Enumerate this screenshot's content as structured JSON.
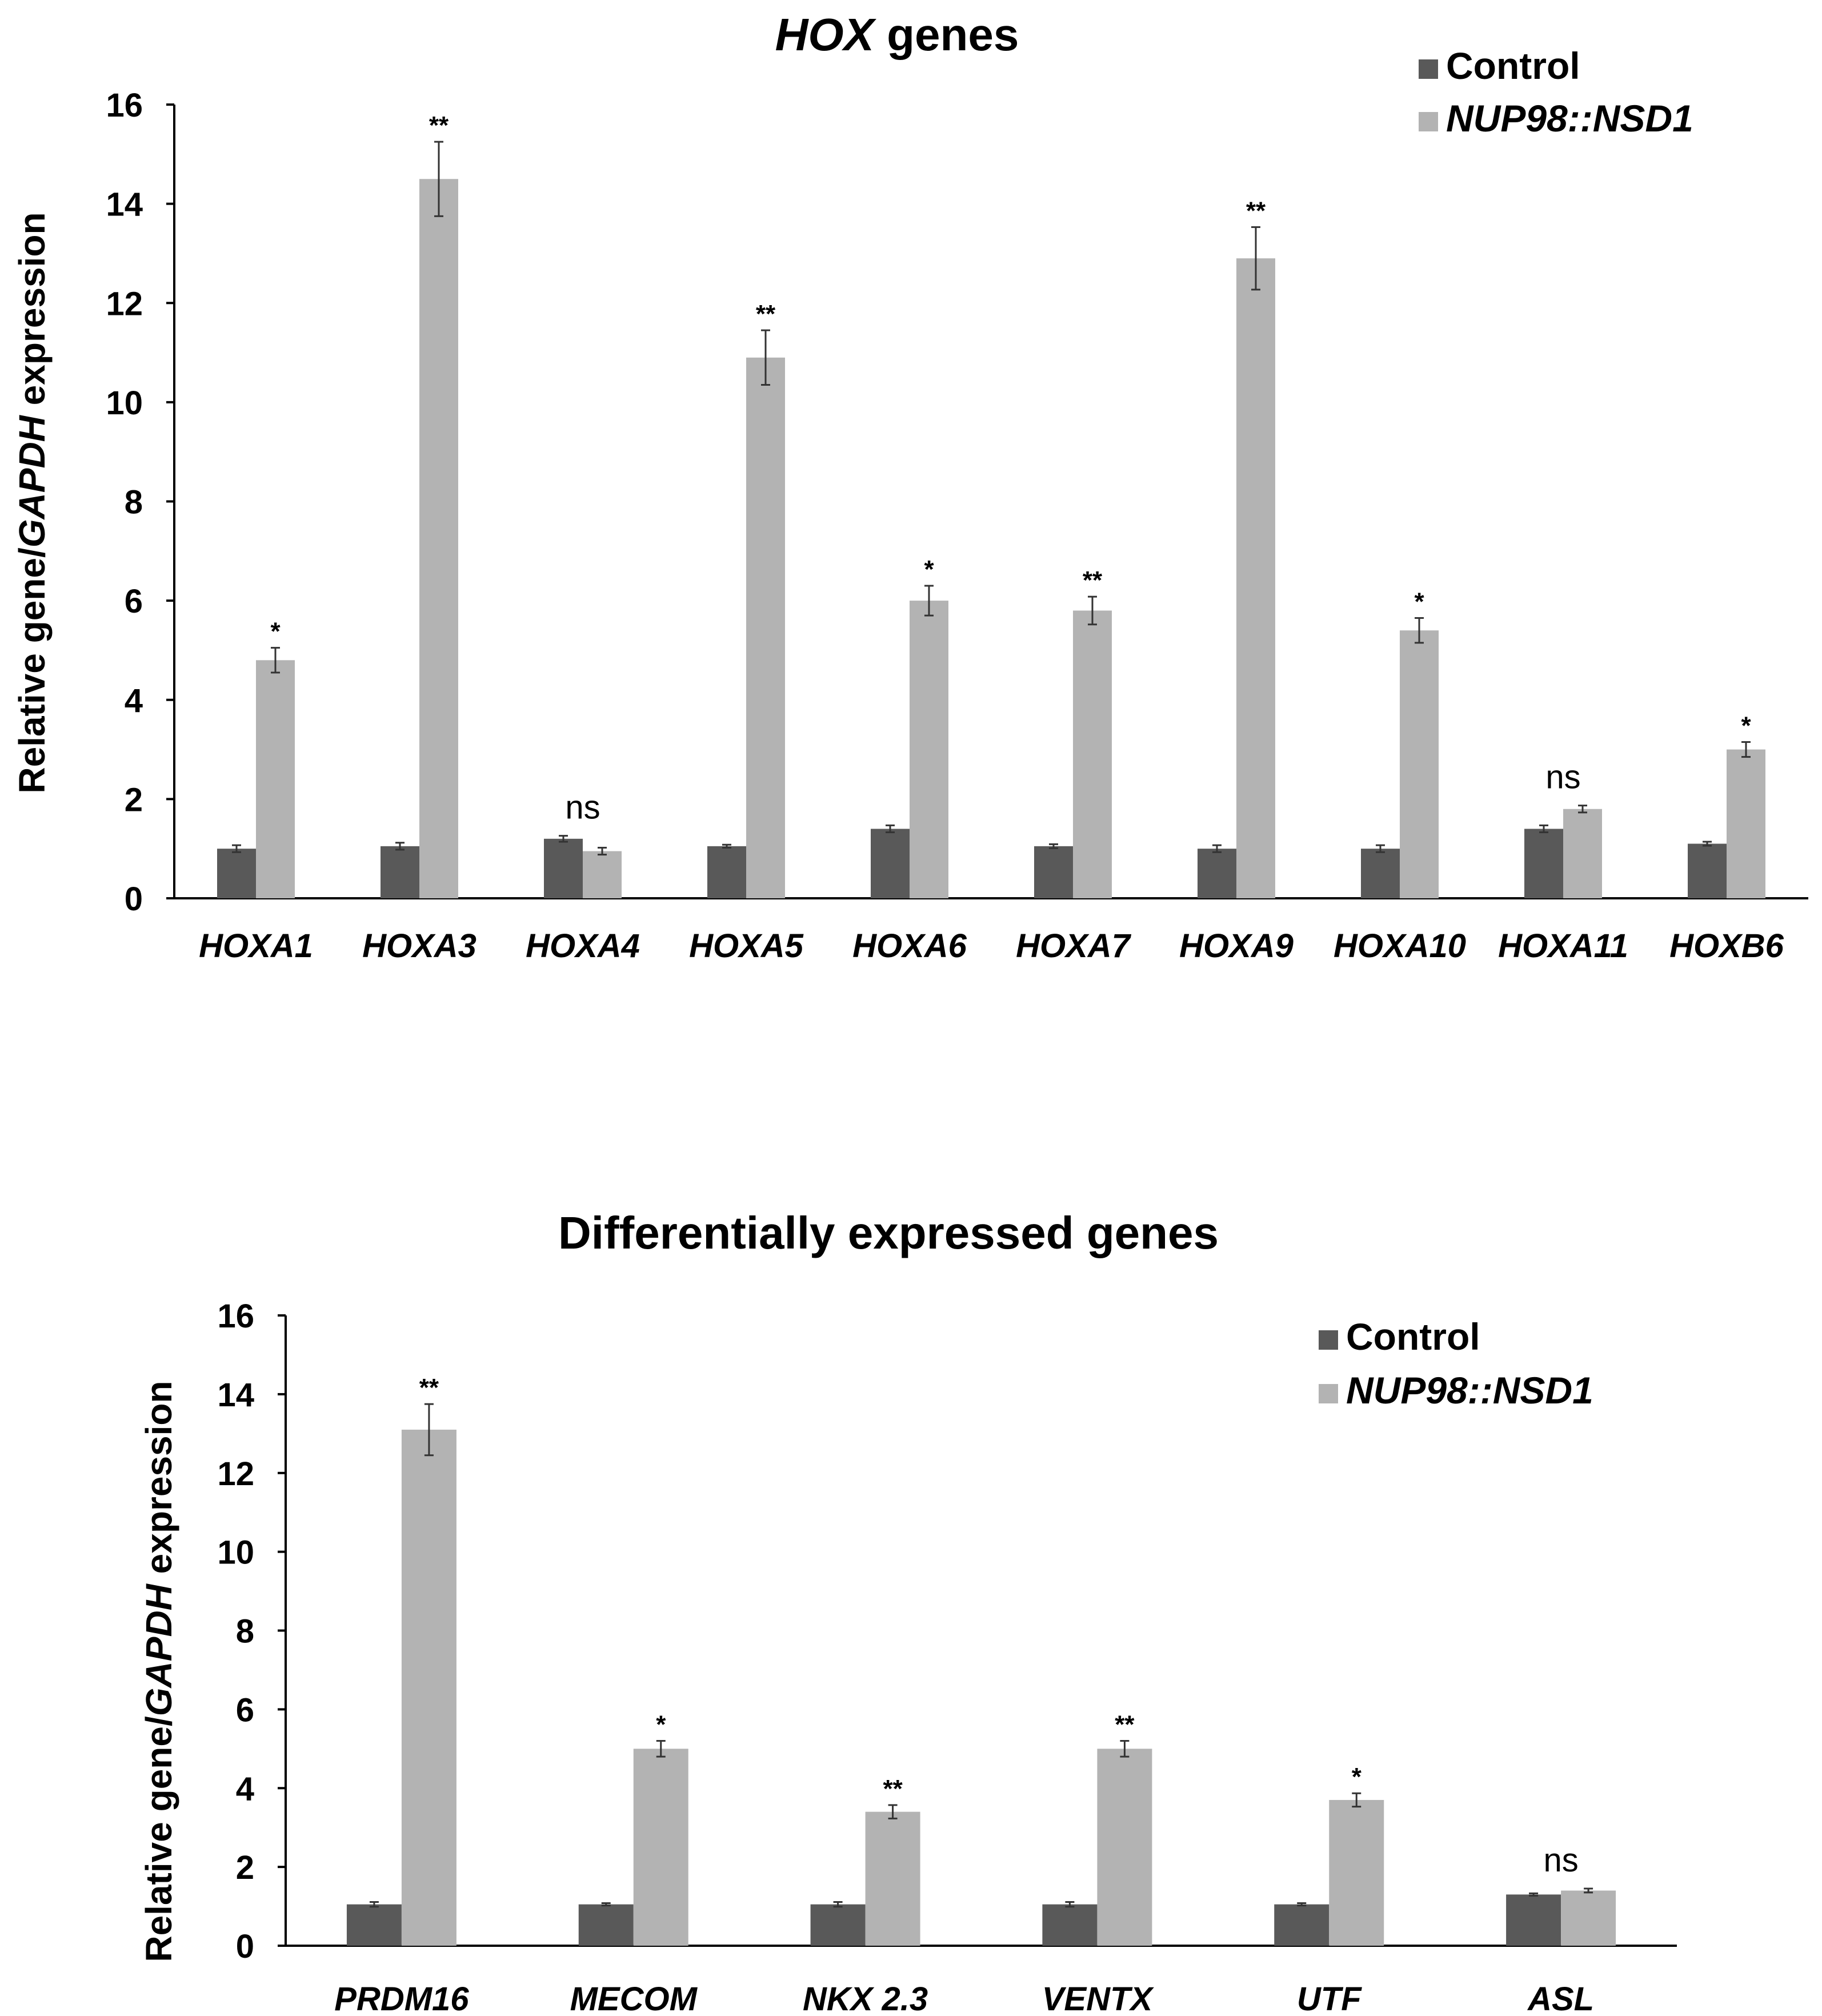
{
  "colors": {
    "control": "#595959",
    "nup": "#b3b3b3",
    "axis": "#000000",
    "text": "#000000"
  },
  "chart_data": [
    {
      "type": "bar",
      "title": {
        "italic": "HOX",
        "plain": " genes"
      },
      "ylabel": {
        "pre": "Relative gene/",
        "italic": "GAPDH",
        "post": " expression"
      },
      "xlabel": "",
      "ylim": [
        0,
        16
      ],
      "yticks": [
        "0",
        "2",
        "4",
        "6",
        "8",
        "10",
        "12",
        "14",
        "16"
      ],
      "grid": false,
      "legend_position": "top-right",
      "categories": [
        "HOXA1",
        "HOXA3",
        "HOXA4",
        "HOXA5",
        "HOXA6",
        "HOXA7",
        "HOXA9",
        "HOXA10",
        "HOXA11",
        "HOXB6"
      ],
      "series": [
        {
          "name": "Control",
          "italic": false,
          "values": [
            1.0,
            1.05,
            1.2,
            1.05,
            1.4,
            1.05,
            1.0,
            1.0,
            1.4,
            1.1
          ],
          "errors": [
            0.07,
            0.07,
            0.06,
            0.03,
            0.07,
            0.04,
            0.07,
            0.07,
            0.07,
            0.04
          ]
        },
        {
          "name": "NUP98::NSD1",
          "italic": true,
          "values": [
            4.8,
            14.5,
            0.95,
            10.9,
            6.0,
            5.8,
            12.9,
            5.4,
            1.8,
            3.0
          ],
          "errors": [
            0.25,
            0.75,
            0.07,
            0.55,
            0.3,
            0.28,
            0.63,
            0.25,
            0.07,
            0.15
          ]
        }
      ],
      "annotations": [
        "*",
        "**",
        "ns",
        "**",
        "*",
        "**",
        "**",
        "*",
        "ns",
        "*"
      ]
    },
    {
      "type": "bar",
      "title": {
        "italic": "",
        "plain": "Differentially expressed genes"
      },
      "ylabel": {
        "pre": "Relative gene/",
        "italic": "GAPDH",
        "post": " expression"
      },
      "xlabel": "",
      "ylim": [
        0,
        16
      ],
      "yticks": [
        "0",
        "2",
        "4",
        "6",
        "8",
        "10",
        "12",
        "14",
        "16"
      ],
      "grid": false,
      "legend_position": "top-right",
      "categories": [
        "PRDM16",
        "MECOM",
        "NKX 2.3",
        "VENTX",
        "UTF",
        "ASL"
      ],
      "series": [
        {
          "name": "Control",
          "italic": false,
          "values": [
            1.05,
            1.05,
            1.05,
            1.05,
            1.05,
            1.3
          ],
          "errors": [
            0.06,
            0.03,
            0.06,
            0.06,
            0.03,
            0.03
          ]
        },
        {
          "name": "NUP98::NSD1",
          "italic": true,
          "values": [
            13.1,
            5.0,
            3.4,
            5.0,
            3.7,
            1.4
          ],
          "errors": [
            0.65,
            0.2,
            0.17,
            0.2,
            0.17,
            0.05
          ]
        }
      ],
      "annotations": [
        "**",
        "*",
        "**",
        "**",
        "*",
        "ns"
      ]
    }
  ]
}
